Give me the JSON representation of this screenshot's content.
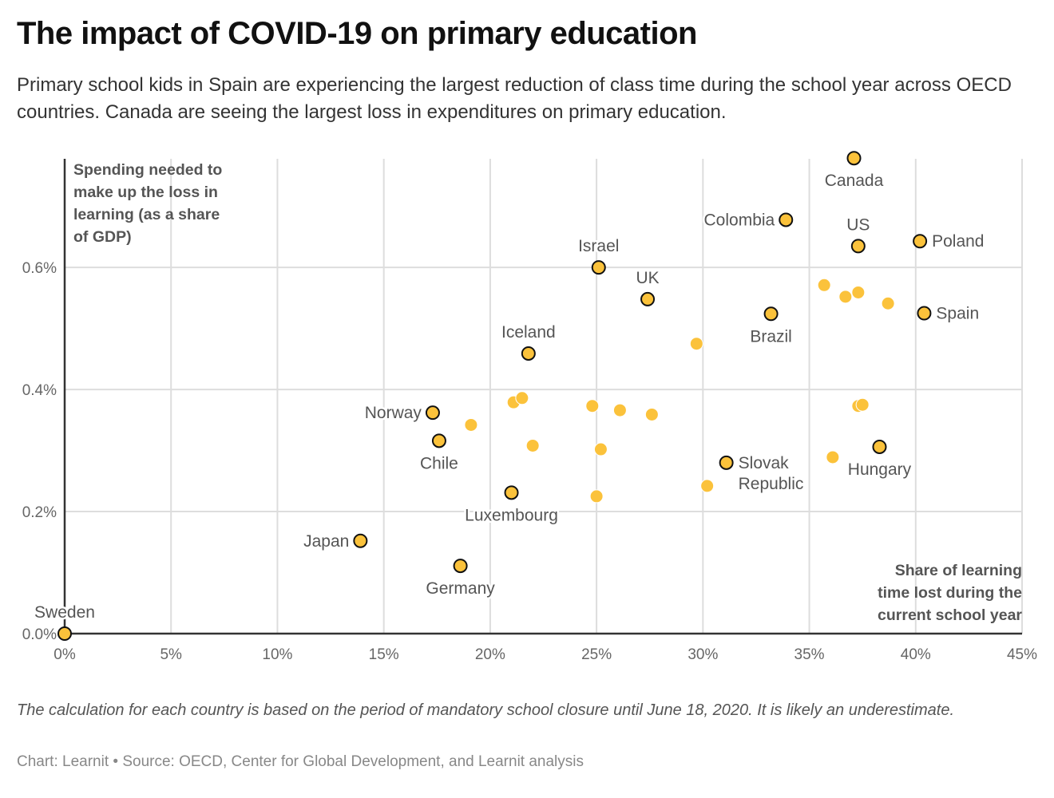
{
  "header": {
    "title": "The impact of COVID-19 on primary education",
    "subtitle": "Primary school kids in Spain are experiencing the largest reduction of class time during the school year across OECD countries. Canada are seeing the largest loss in expenditures on primary education."
  },
  "footer": {
    "note": "The calculation for each country is based on the period of mandatory school closure until June 18, 2020. It is likely an underestimate.",
    "source": "Chart: Learnit • Source: OECD, Center for Global Development, and Learnit analysis"
  },
  "colors": {
    "dot_fill": "#FBC23B",
    "dot_stroke": "#111111",
    "grid": "#DDDDDD",
    "axis": "#333333"
  },
  "chart_data": {
    "type": "scatter",
    "title": "The impact of COVID-19 on primary education",
    "xlabel": "Share of learning time lost during the current school year",
    "xlabel_lines": [
      "Share of learning",
      "time lost during the",
      "current school year"
    ],
    "ylabel": "Spending needed to make up the loss in learning (as a share of GDP)",
    "ylabel_lines": [
      "Spending needed to",
      "make up the loss in",
      "learning (as a share",
      "of GDP)"
    ],
    "xlim": [
      0,
      45
    ],
    "ylim": [
      0,
      0.778
    ],
    "x_ticks": [
      {
        "value": 0,
        "label": "0%"
      },
      {
        "value": 5,
        "label": "5%"
      },
      {
        "value": 10,
        "label": "10%"
      },
      {
        "value": 15,
        "label": "15%"
      },
      {
        "value": 20,
        "label": "20%"
      },
      {
        "value": 25,
        "label": "25%"
      },
      {
        "value": 30,
        "label": "30%"
      },
      {
        "value": 35,
        "label": "35%"
      },
      {
        "value": 40,
        "label": "40%"
      },
      {
        "value": 45,
        "label": "45%"
      }
    ],
    "y_ticks": [
      {
        "value": 0,
        "label": "0.0%"
      },
      {
        "value": 0.2,
        "label": "0.2%"
      },
      {
        "value": 0.4,
        "label": "0.4%"
      },
      {
        "value": 0.6,
        "label": "0.6%"
      }
    ],
    "grid": true,
    "legend": "none",
    "labeled_points": [
      {
        "name": "Sweden",
        "x": 0.0,
        "y": 0.0,
        "label_pos": "top"
      },
      {
        "name": "Japan",
        "x": 13.9,
        "y": 0.152,
        "label_pos": "left"
      },
      {
        "name": "Germany",
        "x": 18.6,
        "y": 0.111,
        "label_pos": "bottom"
      },
      {
        "name": "Norway",
        "x": 17.3,
        "y": 0.362,
        "label_pos": "left"
      },
      {
        "name": "Chile",
        "x": 17.6,
        "y": 0.316,
        "label_pos": "bottom"
      },
      {
        "name": "Luxembourg",
        "x": 21.0,
        "y": 0.231,
        "label_pos": "bottom"
      },
      {
        "name": "Iceland",
        "x": 21.8,
        "y": 0.459,
        "label_pos": "top"
      },
      {
        "name": "Israel",
        "x": 25.1,
        "y": 0.6,
        "label_pos": "top"
      },
      {
        "name": "UK",
        "x": 27.4,
        "y": 0.548,
        "label_pos": "top"
      },
      {
        "name": "Slovak Republic",
        "label_lines": [
          "Slovak",
          "Republic"
        ],
        "x": 31.1,
        "y": 0.28,
        "label_pos": "right"
      },
      {
        "name": "Brazil",
        "x": 33.2,
        "y": 0.524,
        "label_pos": "bottom"
      },
      {
        "name": "Colombia",
        "x": 33.9,
        "y": 0.678,
        "label_pos": "left"
      },
      {
        "name": "Canada",
        "x": 37.1,
        "y": 0.779,
        "label_pos": "bottom"
      },
      {
        "name": "US",
        "x": 37.3,
        "y": 0.635,
        "label_pos": "top"
      },
      {
        "name": "Poland",
        "x": 40.2,
        "y": 0.643,
        "label_pos": "right"
      },
      {
        "name": "Spain",
        "x": 40.4,
        "y": 0.525,
        "label_pos": "right"
      },
      {
        "name": "Hungary",
        "x": 38.3,
        "y": 0.306,
        "label_pos": "bottom"
      }
    ],
    "unlabeled_points": [
      {
        "x": 19.1,
        "y": 0.342
      },
      {
        "x": 21.1,
        "y": 0.379
      },
      {
        "x": 21.5,
        "y": 0.386
      },
      {
        "x": 22.0,
        "y": 0.308
      },
      {
        "x": 24.8,
        "y": 0.373
      },
      {
        "x": 26.1,
        "y": 0.366
      },
      {
        "x": 27.6,
        "y": 0.359
      },
      {
        "x": 25.2,
        "y": 0.302
      },
      {
        "x": 25.0,
        "y": 0.225
      },
      {
        "x": 29.7,
        "y": 0.475
      },
      {
        "x": 30.2,
        "y": 0.242
      },
      {
        "x": 35.7,
        "y": 0.571
      },
      {
        "x": 36.7,
        "y": 0.552
      },
      {
        "x": 37.3,
        "y": 0.559
      },
      {
        "x": 38.7,
        "y": 0.541
      },
      {
        "x": 37.3,
        "y": 0.373
      },
      {
        "x": 37.5,
        "y": 0.375
      },
      {
        "x": 36.1,
        "y": 0.289
      }
    ]
  }
}
